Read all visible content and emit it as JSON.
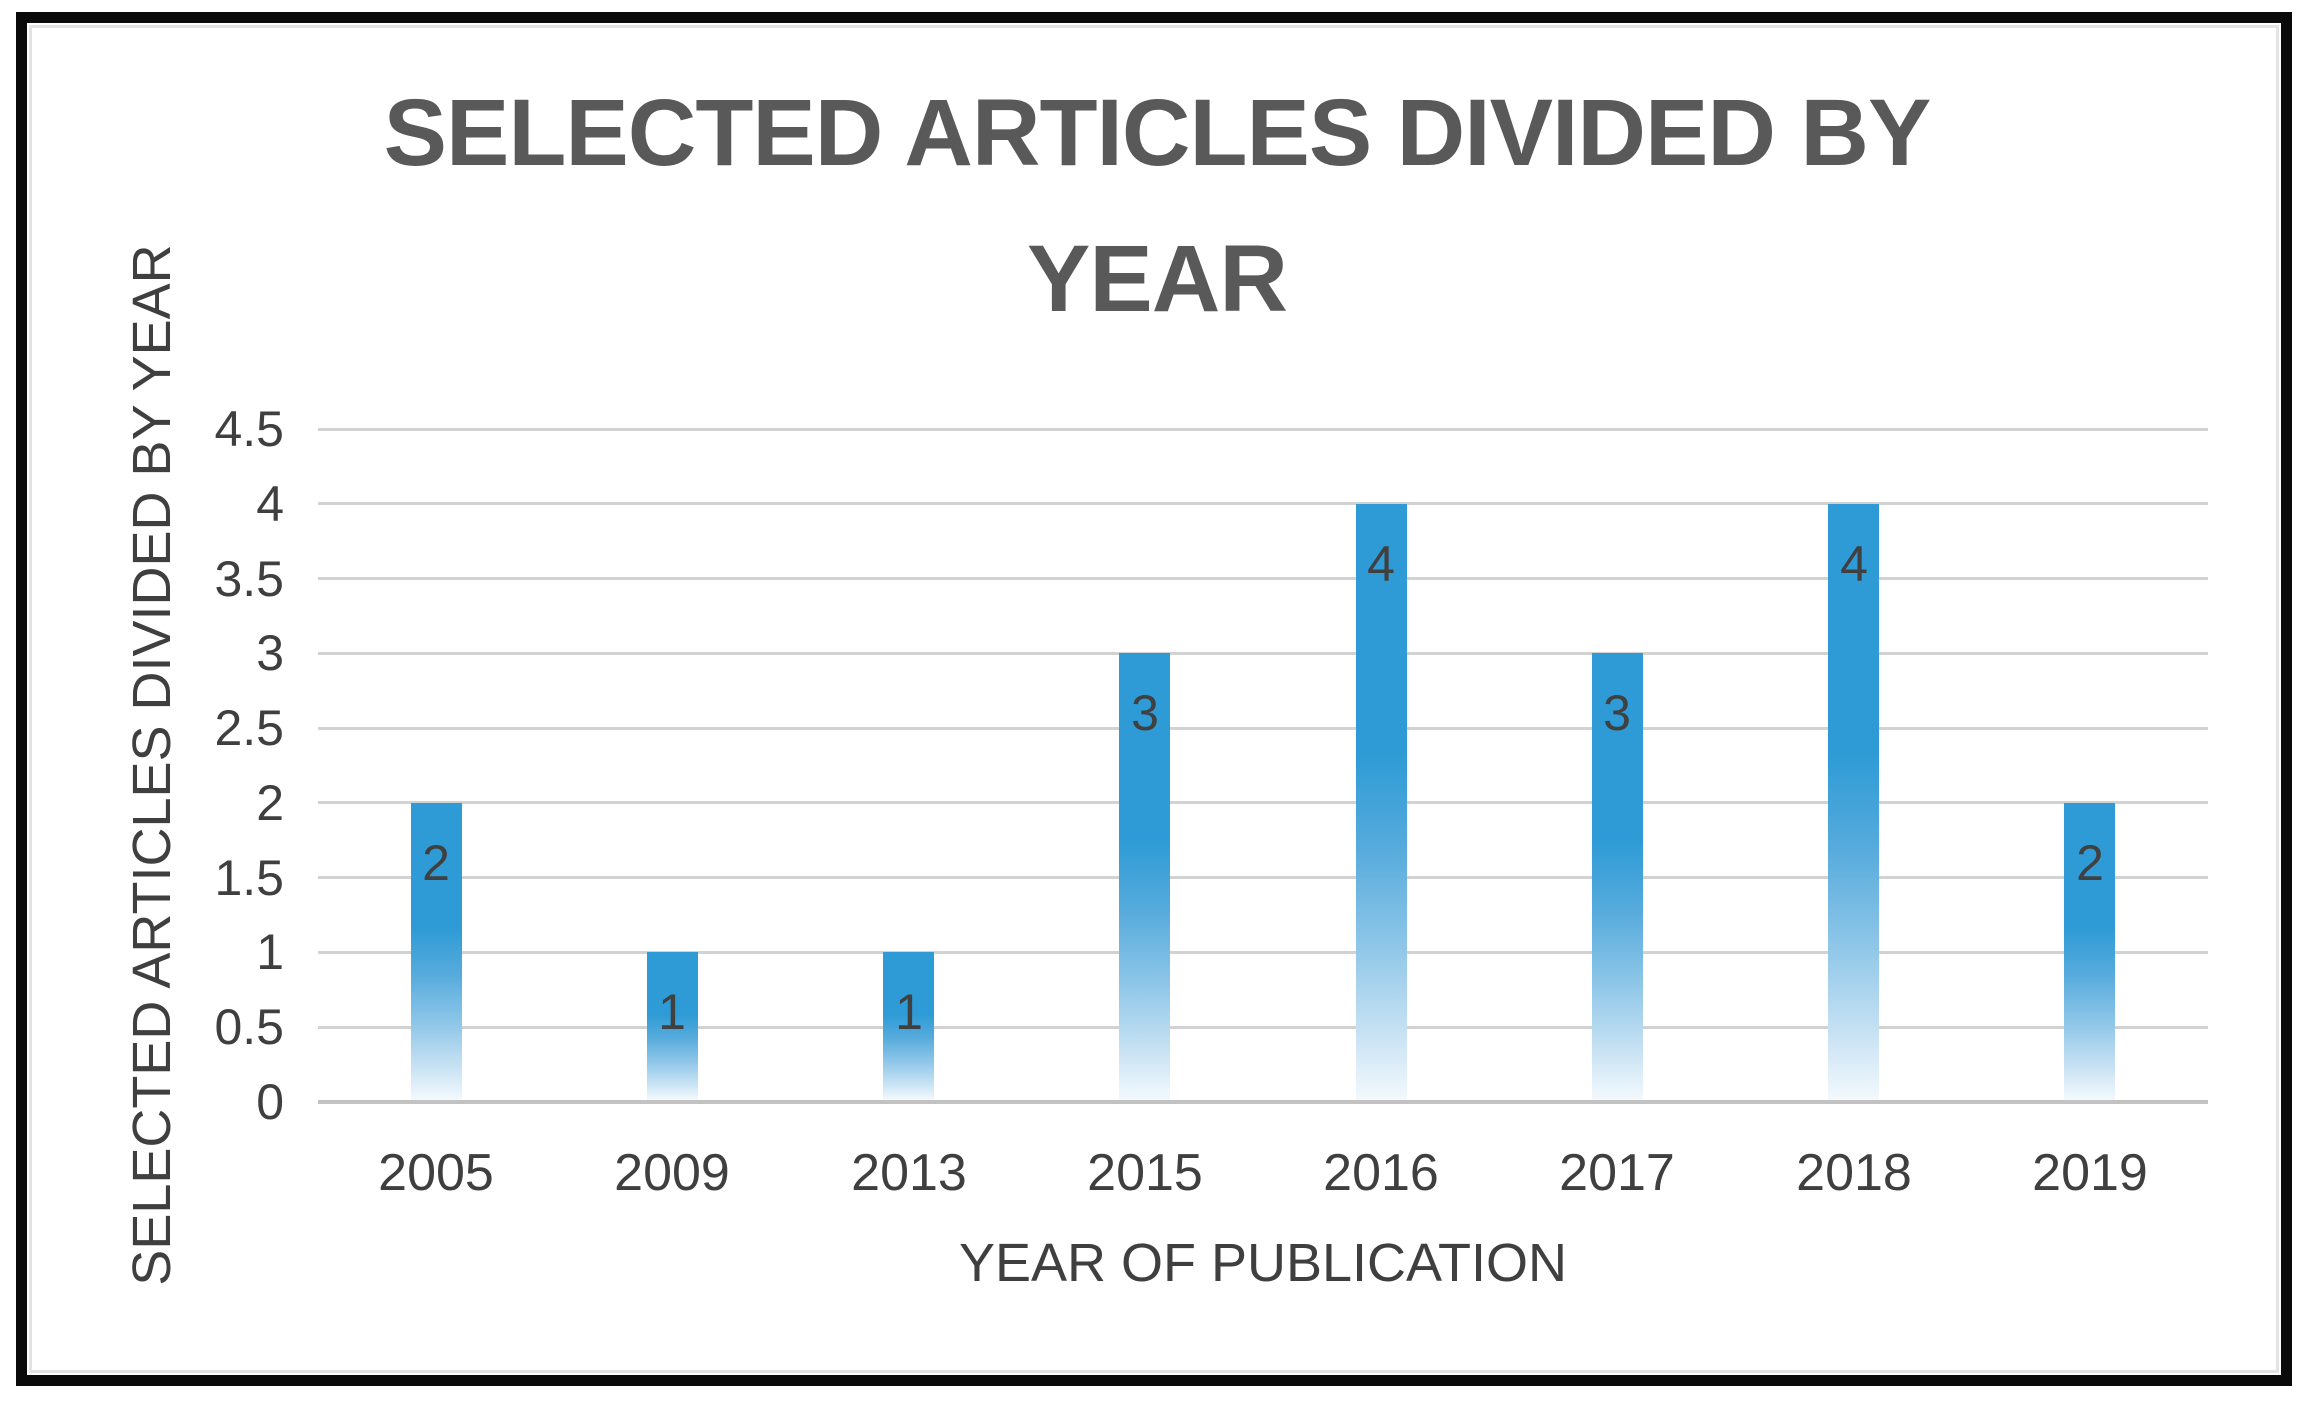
{
  "chart_data": {
    "type": "bar",
    "title": "SELECTED ARTICLES DIVIDED BY YEAR",
    "title_lines": [
      "SELECTED ARTICLES DIVIDED BY",
      "YEAR"
    ],
    "xlabel": "YEAR OF PUBLICATION",
    "ylabel": "SELECTED ARTICLES DIVIDED BY YEAR",
    "categories": [
      "2005",
      "2009",
      "2013",
      "2015",
      "2016",
      "2017",
      "2018",
      "2019"
    ],
    "values": [
      2,
      1,
      1,
      3,
      4,
      3,
      4,
      2
    ],
    "data_labels": [
      "2",
      "1",
      "1",
      "3",
      "4",
      "3",
      "4",
      "2"
    ],
    "y_ticks": [
      0,
      0.5,
      1,
      1.5,
      2,
      2.5,
      3,
      3.5,
      4,
      4.5
    ],
    "y_tick_labels": [
      "0",
      "0.5",
      "1",
      "1.5",
      "2",
      "2.5",
      "3",
      "3.5",
      "4",
      "4.5"
    ],
    "ylim": [
      0,
      4.5
    ],
    "grid": "horizontal-only",
    "legend": "none",
    "colors": {
      "bar_top": "#2E9BD6",
      "bar_fade_end": "#F3F9FD",
      "gridline": "#D2D2D2",
      "baseline": "#C2C2C2",
      "title_text": "#595959",
      "axis_text": "#3F3F3F",
      "data_label_text": "#404040",
      "frame": "#0A0A0A"
    }
  }
}
